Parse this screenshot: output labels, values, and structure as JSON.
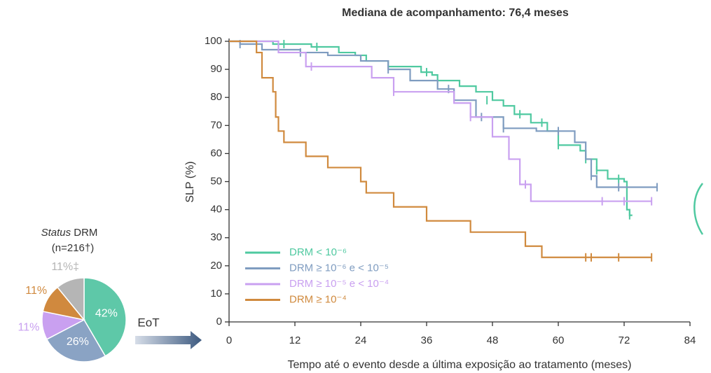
{
  "chart_data": [
    {
      "type": "pie",
      "title_italic": "Status",
      "title": "DRM",
      "subtitle": "(n=216†)",
      "categories": [
        "DRM < 10⁻⁶",
        "DRM ≥ 10⁻⁶ e < 10⁻⁵",
        "DRM ≥ 10⁻⁵ e < 10⁻⁴",
        "DRM ≥ 10⁻⁴",
        null
      ],
      "values": [
        42,
        26,
        11,
        11,
        11
      ],
      "value_labels": [
        "42%",
        "26%",
        "11%",
        "11%",
        "11%‡"
      ],
      "colors": [
        "#5ec8a8",
        "#8aa3c4",
        "#c9a0f0",
        "#d0893e",
        "#b5b5b5"
      ],
      "annotation": "EoT"
    },
    {
      "type": "line",
      "title": "Mediana de acompanhamento: 76,4 meses",
      "x_label": "Tempo até o evento desde a última exposição ao tratamento (meses)",
      "y_label": "SLP (%)",
      "xlim": [
        0,
        84
      ],
      "xticks": [
        0,
        12,
        24,
        36,
        48,
        60,
        72,
        84
      ],
      "ylim": [
        0,
        100
      ],
      "yticks": [
        0,
        10,
        20,
        30,
        40,
        50,
        60,
        70,
        80,
        90,
        100
      ],
      "step": true,
      "legend": "lower left",
      "series": [
        {
          "name": "DRM < 10⁻⁶",
          "color": "#4fc9a0",
          "x": [
            0,
            8,
            15,
            20,
            23,
            25,
            29,
            35,
            37,
            38,
            42,
            45,
            48,
            50,
            52,
            55,
            58,
            60,
            64,
            65,
            67,
            69,
            72,
            72.5,
            73,
            73.5
          ],
          "values": [
            100,
            99,
            98,
            96,
            95,
            93,
            91,
            89,
            88,
            86,
            84,
            82,
            79,
            77,
            74,
            71,
            68,
            63,
            61,
            58,
            54,
            51,
            50,
            40,
            38,
            38
          ],
          "censor_x": [
            10,
            16,
            36,
            47,
            53,
            57,
            60,
            65,
            67,
            71,
            73
          ],
          "censor_values": [
            99,
            98,
            89,
            79,
            74,
            71,
            63,
            58,
            54,
            51,
            38
          ]
        },
        {
          "name": "DRM ≥ 10⁻⁶ e < 10⁻⁵",
          "color": "#7f9cc0",
          "x": [
            0,
            2,
            6,
            13,
            18,
            24,
            29,
            33,
            38,
            41,
            45,
            50,
            56,
            63,
            65,
            66,
            67,
            78
          ],
          "values": [
            100,
            99,
            97,
            96,
            95,
            93,
            90,
            86,
            83,
            79,
            73,
            69,
            68,
            64,
            58,
            52,
            48,
            48
          ],
          "censor_x": [
            2,
            13,
            29,
            40,
            46,
            50,
            60,
            66,
            71,
            78
          ],
          "censor_values": [
            99,
            96,
            90,
            83,
            73,
            69,
            68,
            52,
            48,
            48
          ]
        },
        {
          "name": "DRM ≥ 10⁻⁵ e < 10⁻⁴",
          "color": "#c9a0f0",
          "x": [
            0,
            9,
            14,
            26,
            30,
            41,
            44,
            48,
            51,
            53,
            55,
            77
          ],
          "values": [
            100,
            96,
            91,
            87,
            82,
            78,
            73,
            66,
            58,
            49,
            43,
            43
          ],
          "censor_x": [
            15,
            30,
            44,
            54,
            68,
            72,
            77
          ],
          "censor_values": [
            91,
            82,
            73,
            49,
            43,
            43,
            43
          ]
        },
        {
          "name": "DRM ≥ 10⁻⁴",
          "color": "#d08a3e",
          "x": [
            0,
            5,
            6,
            8,
            8.5,
            9,
            10,
            14,
            18,
            24,
            25,
            30,
            36,
            44,
            54,
            57,
            77
          ],
          "values": [
            100,
            96,
            87,
            82,
            73,
            68,
            64,
            59,
            55,
            50,
            46,
            41,
            36,
            32,
            27,
            23,
            23
          ],
          "censor_x": [
            65,
            66,
            71,
            77
          ],
          "censor_values": [
            23,
            23,
            23,
            23
          ]
        }
      ]
    }
  ]
}
